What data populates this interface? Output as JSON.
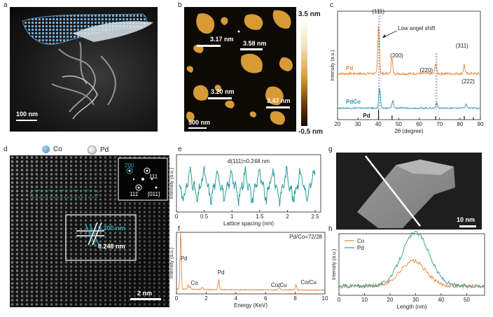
{
  "panel_labels": {
    "a": "a",
    "b": "b",
    "c": "c",
    "d": "d",
    "e": "e",
    "f": "f",
    "g": "g",
    "h": "h"
  },
  "panel_a": {
    "scale_bar": "100 nm"
  },
  "panel_b": {
    "scale_bar": "500 nm",
    "colorbar_max": "3.5 nm",
    "colorbar_min": "-0.5 nm",
    "heights": [
      "3.17 nm",
      "3.58 nm",
      "3.20 nm",
      "3.47 nm"
    ]
  },
  "panel_d": {
    "legend": [
      "Co",
      "Pd"
    ],
    "fft_labels": [
      "200",
      "111",
      "111̄",
      "[011]"
    ],
    "spacings": [
      "0.200 nm",
      "0.248 nm"
    ],
    "scale_bar": "2 nm",
    "colors": {
      "co": "#3d8fc2",
      "pd": "#d9d9d9"
    }
  },
  "panel_g": {
    "scale_bar": "10 nm"
  },
  "chart_data": [
    {
      "panel": "c",
      "type": "line",
      "xlabel": "2θ (degree)",
      "ylabel": "Intensity (a.u.)",
      "xlim": [
        20,
        90
      ],
      "xticks": [
        20,
        30,
        40,
        50,
        60,
        70,
        80,
        90
      ],
      "annotation": "Low angel shift",
      "peak_labels": [
        "(111)",
        "(200)",
        "(220)",
        "(311)",
        "(222)"
      ],
      "reference_label": "Pd",
      "series": [
        {
          "name": "Pd",
          "color": "#e8863a",
          "peaks": [
            [
              40.1,
              1.0
            ],
            [
              46.6,
              0.32
            ],
            [
              68.1,
              0.22
            ],
            [
              82.1,
              0.18
            ]
          ]
        },
        {
          "name": "PdCo",
          "color": "#2b8fb5",
          "peaks": [
            [
              40.6,
              0.75
            ],
            [
              47.1,
              0.28
            ],
            [
              68.6,
              0.2
            ],
            [
              83.0,
              0.14
            ]
          ]
        }
      ],
      "reference_sticks": [
        40.1,
        46.7,
        68.1,
        82.1,
        86.6
      ]
    },
    {
      "panel": "e",
      "type": "line",
      "title": "d(111)=0.248 nm",
      "xlabel": "Lattice spacing (nm)",
      "ylabel": "Intensity (a.u.)",
      "xlim": [
        0,
        2.6
      ],
      "xticks": [
        0.0,
        0.5,
        1.0,
        1.5,
        2.0,
        2.5
      ],
      "period": 0.248,
      "color": "#2a9d9a"
    },
    {
      "panel": "f",
      "type": "line",
      "title": "Pd/Co=72/28",
      "xlabel": "Energy (KeV)",
      "ylabel": "Intensity (a.u.)",
      "xlim": [
        0,
        10
      ],
      "xticks": [
        0,
        2,
        4,
        6,
        8,
        10
      ],
      "color": "#e8863a",
      "peak_labels": [
        "Pd",
        "Co",
        "Pd",
        "Co/Cu",
        "Co/Cu"
      ],
      "peaks": [
        [
          0.28,
          1.0
        ],
        [
          0.78,
          0.08
        ],
        [
          2.84,
          0.18
        ],
        [
          6.93,
          0.06
        ],
        [
          8.05,
          0.1
        ],
        [
          0.93,
          0.05
        ],
        [
          1.74,
          0.04
        ]
      ]
    },
    {
      "panel": "h",
      "type": "line",
      "xlabel": "Length (nm)",
      "ylabel": "Intensity (a.u.)",
      "xlim": [
        0,
        57
      ],
      "xticks": [
        0,
        10,
        20,
        30,
        40,
        50
      ],
      "series": [
        {
          "name": "Co",
          "color": "#e8863a",
          "center": 29,
          "amp": 0.4,
          "width": 7
        },
        {
          "name": "Pd",
          "color": "#2a9d9a",
          "center": 30,
          "amp": 0.85,
          "width": 7.5
        }
      ]
    }
  ]
}
